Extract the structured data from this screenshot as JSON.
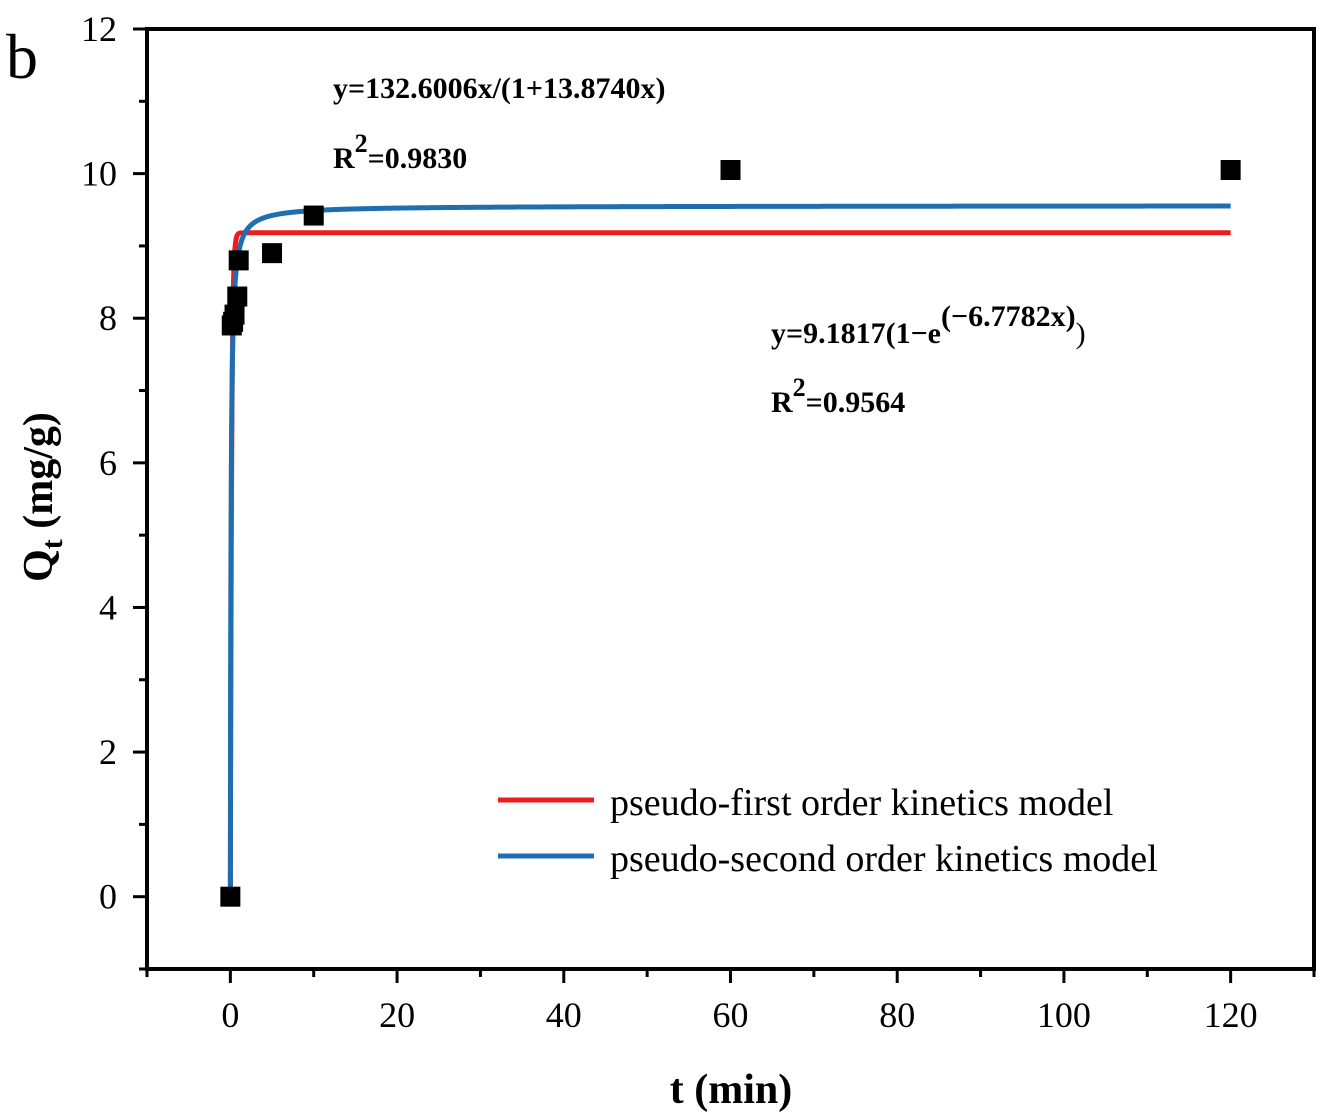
{
  "panel_label": "b",
  "chart_data": {
    "type": "scatter",
    "xlabel": "t (min)",
    "ylabel_main": "Q",
    "ylabel_sub": "t",
    "ylabel_rest": " (mg/g)",
    "xlim": [
      -10,
      130
    ],
    "ylim": [
      -1,
      12
    ],
    "x_ticks": [
      0,
      20,
      40,
      60,
      80,
      100,
      120
    ],
    "y_ticks": [
      0,
      2,
      4,
      6,
      8,
      10,
      12
    ],
    "x_tick_labels": [
      "0",
      "20",
      "40",
      "60",
      "80",
      "100",
      "120"
    ],
    "y_tick_labels": [
      "0",
      "2",
      "4",
      "6",
      "8",
      "10",
      "12"
    ],
    "points": {
      "x": [
        0,
        0.17,
        0.33,
        0.5,
        0.83,
        1,
        5,
        10,
        60,
        120
      ],
      "y": [
        0,
        7.9,
        7.95,
        8.05,
        8.3,
        8.8,
        8.9,
        9.42,
        10.05,
        10.05
      ],
      "color": "#000000",
      "marker": "square"
    },
    "series": [
      {
        "name": "pseudo-first order kinetics model",
        "color": "#ee1c1c",
        "model": "first",
        "qe": 9.1817,
        "k": 6.7782
      },
      {
        "name": "pseudo-second order kinetics model",
        "color": "#1f6fb0",
        "model": "second",
        "a": 132.6006,
        "b": 13.874
      }
    ],
    "legend_position": "bottom-right",
    "annotations": {
      "second_equation": "y=132.6006x/(1+13.8740x)",
      "second_r2_prefix": "R",
      "second_r2_exp": "2",
      "second_r2_value": "=0.9830",
      "first_equation_base": "y=9.1817(1−e",
      "first_equation_exp": "(−6.7782x)",
      "first_equation_close": ")",
      "first_r2_prefix": "R",
      "first_r2_exp": "2",
      "first_r2_value": "=0.9564"
    }
  }
}
